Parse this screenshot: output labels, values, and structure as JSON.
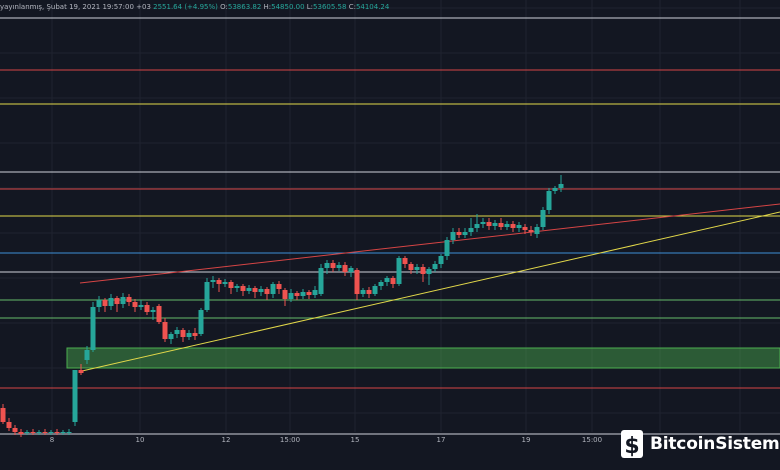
{
  "header": {
    "prefix": "yayınlanmış, Şubat 19, 2021 19:57:00 +03",
    "change": "2551.64 (+4.95%)",
    "o_label": "O:",
    "o_value": "53863.82",
    "h_label": "H:",
    "h_value": "54850.00",
    "l_label": "L:",
    "l_value": "53605.58",
    "c_label": "C:",
    "c_value": "54104.24"
  },
  "watermark": {
    "text": "BitcoinSistemi",
    "icon": "bitcoin-logo-icon"
  },
  "colors": {
    "background": "#131722",
    "up": "#26a69a",
    "down": "#ef5350",
    "grid": "#1f2330",
    "yellow": "#e2d84a",
    "red_line": "#d64545",
    "blue": "#3d8fd6",
    "green": "#66bb6a",
    "white_line": "#cfd2d9",
    "zone": "#4caf50"
  },
  "chart_data": {
    "type": "candlestick",
    "x_ticks": [
      "8",
      "10",
      "12",
      "15:00",
      "15",
      "17",
      "19",
      "15:00"
    ],
    "y_range": [
      0,
      470
    ],
    "horizontal_levels": [
      {
        "y": 452,
        "color": "white_line"
      },
      {
        "y": 400,
        "color": "red_line"
      },
      {
        "y": 366,
        "color": "yellow"
      },
      {
        "y": 298,
        "color": "white_line"
      },
      {
        "y": 281,
        "color": "red_line"
      },
      {
        "y": 254,
        "color": "yellow"
      },
      {
        "y": 217,
        "color": "blue"
      },
      {
        "y": 198,
        "color": "white_line"
      },
      {
        "y": 170,
        "color": "green"
      },
      {
        "y": 152,
        "color": "green"
      },
      {
        "y": 82,
        "color": "red_line"
      },
      {
        "y": 36,
        "color": "white_line"
      }
    ],
    "zone": {
      "y_from": 102,
      "y_to": 122
    },
    "trendlines": [
      {
        "color": "red_line",
        "from": [
          80,
          187
        ],
        "to": [
          780,
          266
        ]
      },
      {
        "color": "yellow",
        "from": [
          82,
          99
        ],
        "to": [
          780,
          258
        ]
      }
    ],
    "candles": [
      [
        0,
        62,
        48,
        66,
        46
      ],
      [
        6,
        48,
        42,
        52,
        39
      ],
      [
        12,
        42,
        38,
        45,
        35
      ],
      [
        18,
        38,
        36,
        41,
        33
      ],
      [
        24,
        37,
        38,
        40,
        35
      ],
      [
        30,
        38,
        37,
        41,
        35
      ],
      [
        36,
        37,
        38,
        40,
        35
      ],
      [
        42,
        38,
        37,
        41,
        35
      ],
      [
        48,
        37,
        38,
        40,
        35
      ],
      [
        54,
        38,
        37,
        41,
        35
      ],
      [
        60,
        37,
        38,
        40,
        35
      ],
      [
        66,
        38,
        38,
        41,
        35
      ],
      [
        72,
        48,
        100,
        100,
        44
      ],
      [
        78,
        100,
        97,
        106,
        95
      ],
      [
        84,
        110,
        120,
        124,
        106
      ],
      [
        90,
        120,
        163,
        168,
        118
      ],
      [
        96,
        163,
        170,
        174,
        158
      ],
      [
        102,
        170,
        164,
        172,
        158
      ],
      [
        108,
        164,
        172,
        176,
        160
      ],
      [
        114,
        172,
        166,
        174,
        158
      ],
      [
        120,
        166,
        173,
        177,
        162
      ],
      [
        126,
        173,
        168,
        176,
        164
      ],
      [
        132,
        168,
        163,
        171,
        158
      ],
      [
        138,
        163,
        165,
        170,
        160
      ],
      [
        144,
        165,
        158,
        168,
        155
      ],
      [
        150,
        158,
        160,
        163,
        150
      ],
      [
        156,
        164,
        148,
        166,
        146
      ],
      [
        162,
        148,
        131,
        152,
        128
      ],
      [
        168,
        131,
        136,
        138,
        126
      ],
      [
        174,
        136,
        140,
        143,
        132
      ],
      [
        180,
        140,
        133,
        142,
        128
      ],
      [
        186,
        133,
        137,
        140,
        130
      ],
      [
        192,
        137,
        134,
        142,
        130
      ],
      [
        198,
        136,
        160,
        162,
        134
      ],
      [
        204,
        160,
        188,
        192,
        158
      ],
      [
        210,
        188,
        190,
        194,
        182
      ],
      [
        216,
        190,
        186,
        192,
        178
      ],
      [
        222,
        186,
        188,
        191,
        183
      ],
      [
        228,
        188,
        182,
        190,
        176
      ],
      [
        234,
        182,
        184,
        186,
        178
      ],
      [
        240,
        184,
        179,
        186,
        174
      ],
      [
        246,
        179,
        182,
        185,
        176
      ],
      [
        252,
        182,
        178,
        184,
        172
      ],
      [
        258,
        178,
        181,
        184,
        174
      ],
      [
        264,
        181,
        176,
        183,
        170
      ],
      [
        270,
        176,
        186,
        188,
        172
      ],
      [
        276,
        186,
        181,
        189,
        176
      ],
      [
        282,
        180,
        171,
        182,
        164
      ],
      [
        288,
        171,
        177,
        181,
        168
      ],
      [
        294,
        177,
        174,
        179,
        170
      ],
      [
        300,
        174,
        178,
        181,
        171
      ],
      [
        306,
        178,
        175,
        180,
        171
      ],
      [
        312,
        175,
        180,
        184,
        172
      ],
      [
        318,
        176,
        202,
        206,
        174
      ],
      [
        324,
        202,
        207,
        210,
        196
      ],
      [
        330,
        207,
        202,
        210,
        198
      ],
      [
        336,
        202,
        205,
        208,
        199
      ],
      [
        342,
        205,
        198,
        208,
        194
      ],
      [
        348,
        198,
        202,
        204,
        193
      ],
      [
        354,
        200,
        176,
        202,
        170
      ],
      [
        360,
        176,
        180,
        182,
        173
      ],
      [
        366,
        180,
        176,
        183,
        172
      ],
      [
        372,
        176,
        184,
        186,
        174
      ],
      [
        378,
        184,
        188,
        190,
        180
      ],
      [
        384,
        188,
        192,
        194,
        184
      ],
      [
        390,
        192,
        186,
        194,
        182
      ],
      [
        396,
        186,
        212,
        214,
        184
      ],
      [
        402,
        212,
        206,
        214,
        202
      ],
      [
        408,
        206,
        200,
        208,
        196
      ],
      [
        414,
        200,
        203,
        206,
        196
      ],
      [
        420,
        203,
        196,
        206,
        188
      ],
      [
        426,
        196,
        201,
        203,
        185
      ],
      [
        432,
        201,
        206,
        209,
        198
      ],
      [
        438,
        206,
        214,
        216,
        202
      ],
      [
        444,
        214,
        230,
        233,
        210
      ],
      [
        450,
        230,
        238,
        242,
        226
      ],
      [
        456,
        238,
        235,
        242,
        232
      ],
      [
        462,
        235,
        238,
        242,
        232
      ],
      [
        468,
        238,
        242,
        252,
        234
      ],
      [
        474,
        242,
        246,
        256,
        238
      ],
      [
        480,
        246,
        248,
        252,
        242
      ],
      [
        486,
        248,
        244,
        252,
        240
      ],
      [
        492,
        244,
        247,
        250,
        240
      ],
      [
        498,
        247,
        243,
        252,
        240
      ],
      [
        504,
        243,
        246,
        249,
        240
      ],
      [
        510,
        246,
        242,
        249,
        238
      ],
      [
        516,
        242,
        245,
        248,
        238
      ],
      [
        522,
        243,
        240,
        246,
        236
      ],
      [
        528,
        240,
        238,
        244,
        234
      ],
      [
        534,
        236,
        243,
        246,
        232
      ],
      [
        540,
        243,
        260,
        263,
        240
      ],
      [
        546,
        260,
        279,
        282,
        256
      ],
      [
        552,
        279,
        282,
        284,
        276
      ],
      [
        558,
        282,
        286,
        295,
        278
      ]
    ]
  }
}
